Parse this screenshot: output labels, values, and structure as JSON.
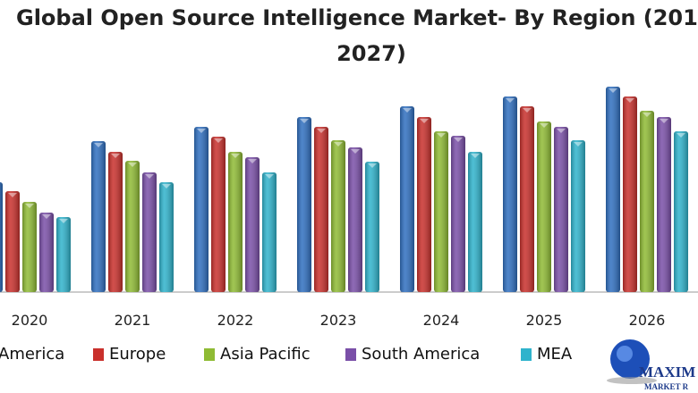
{
  "chart_data": {
    "type": "bar",
    "title_line1": "Global Open Source Intelligence Market- By Region (201",
    "title_line2": "2027)",
    "categories": [
      "2020",
      "2021",
      "2022",
      "2023",
      "2024",
      "2025",
      "2026"
    ],
    "series": [
      {
        "name": "America",
        "color": "#2f6fc0",
        "values": [
          123,
          169,
          185,
          196,
          208,
          219,
          230
        ]
      },
      {
        "name": "Europe",
        "color": "#c9302c",
        "values": [
          113,
          157,
          174,
          185,
          196,
          208,
          219
        ]
      },
      {
        "name": "Asia Pacific",
        "color": "#8fbb34",
        "values": [
          101,
          147,
          157,
          170,
          180,
          191,
          203
        ]
      },
      {
        "name": "South America",
        "color": "#7a4fa8",
        "values": [
          89,
          134,
          151,
          162,
          175,
          185,
          196
        ]
      },
      {
        "name": "MEA",
        "color": "#2fb3cc",
        "values": [
          84,
          123,
          134,
          146,
          157,
          170,
          180
        ]
      }
    ],
    "ylim": [
      0,
      240
    ],
    "grid": false,
    "legend": "bottom",
    "logo_text": "MAXIMIZE MARKET RESEARCH"
  }
}
